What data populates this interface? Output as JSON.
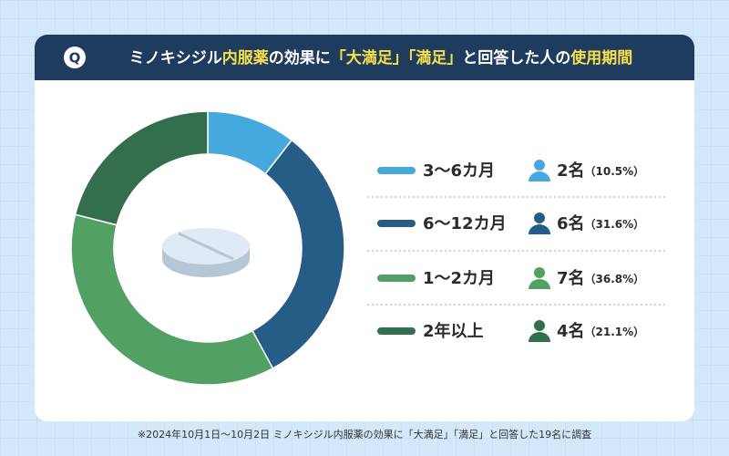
{
  "header": {
    "icon": "Q",
    "title_segments": [
      {
        "text": "ミノキシジル",
        "color": "#ffffff"
      },
      {
        "text": "内服薬",
        "color": "#f7e14b"
      },
      {
        "text": "の効果に",
        "color": "#ffffff"
      },
      {
        "text": "「大満足」「満足」",
        "color": "#f7e14b"
      },
      {
        "text": "と回答した人の",
        "color": "#ffffff"
      },
      {
        "text": "使用期間",
        "color": "#f7e14b"
      }
    ]
  },
  "chart_data": {
    "type": "pie",
    "categories": [
      "3〜6カ月",
      "6〜12カ月",
      "1〜2カ月",
      "2年以上"
    ],
    "values": [
      2,
      6,
      7,
      4
    ],
    "value_labels": [
      "2名",
      "6名",
      "7名",
      "4名"
    ],
    "percentages": [
      10.5,
      31.6,
      36.8,
      21.1
    ],
    "percent_labels": [
      "（10.5%）",
      "（31.6%）",
      "（36.8%）",
      "（21.1%）"
    ],
    "colors": [
      "#45a9de",
      "#255d86",
      "#53a064",
      "#336f4e"
    ]
  },
  "footnote": "※2024年10月1日〜10月2日 ミノキシジル内服薬の効果に「大満足」「満足」と回答した19名に調査"
}
